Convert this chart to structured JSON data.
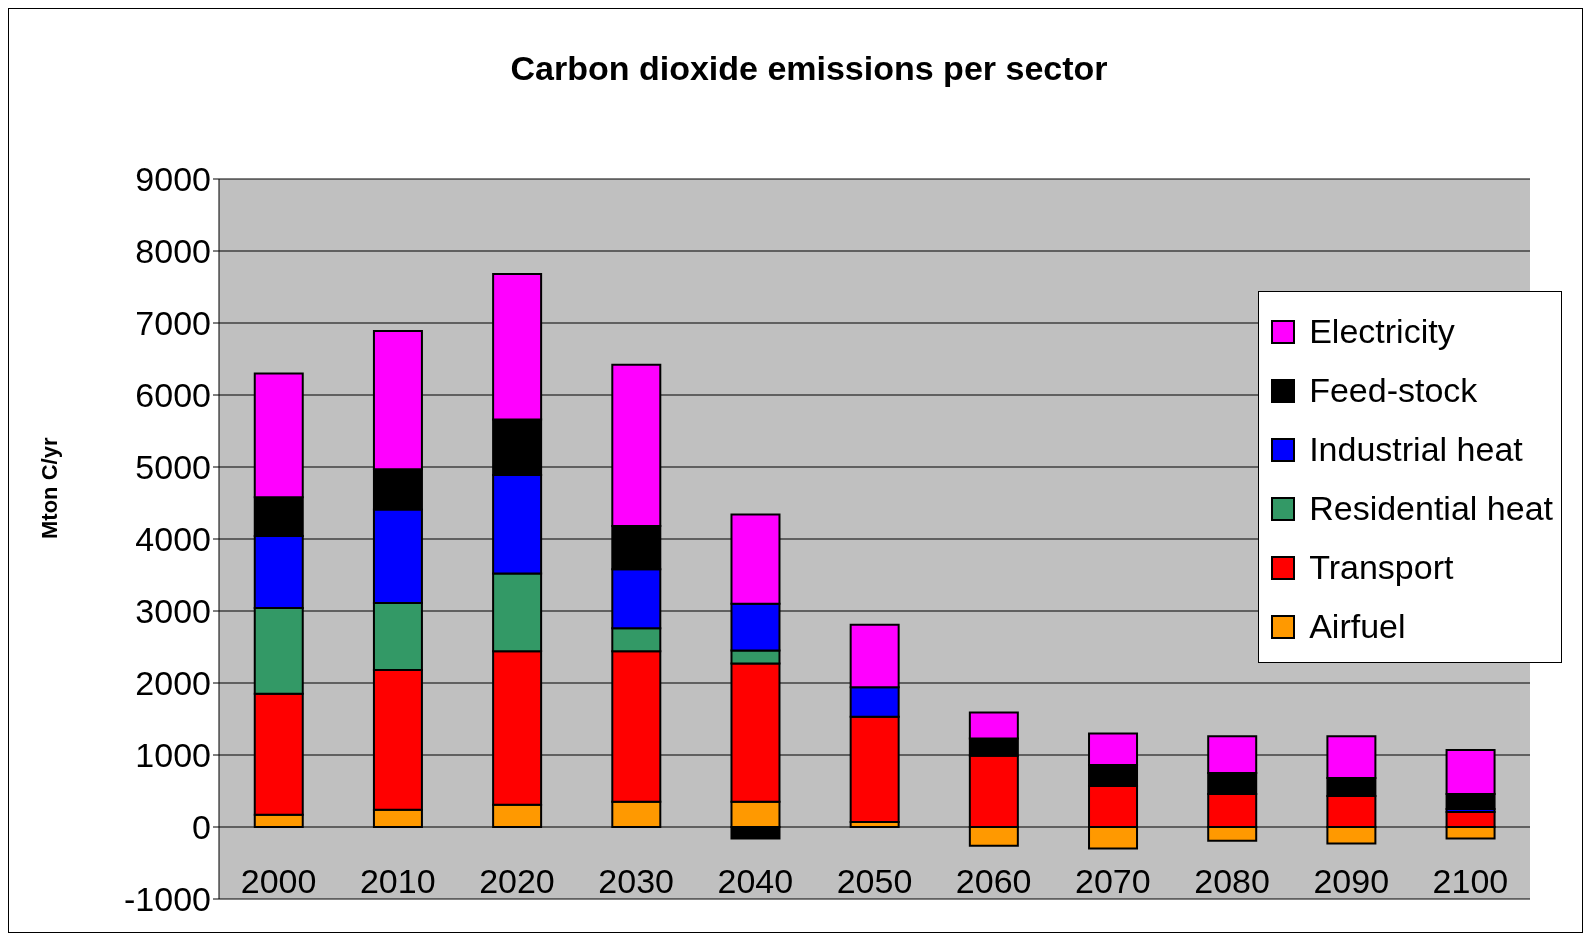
{
  "chart_data": {
    "type": "bar",
    "title": "Carbon dioxide emissions per sector",
    "ylabel": "Mton C/yr",
    "categories": [
      "2000",
      "2010",
      "2020",
      "2030",
      "2040",
      "2050",
      "2060",
      "2070",
      "2080",
      "2090",
      "2100"
    ],
    "stacked": true,
    "series": [
      {
        "name": "Airfuel",
        "color": "#ff9900",
        "values": [
          170,
          240,
          310,
          350,
          350,
          70,
          -260,
          -300,
          -190,
          -230,
          -160
        ]
      },
      {
        "name": "Transport",
        "color": "#ff0000",
        "values": [
          1680,
          1940,
          2130,
          2090,
          1920,
          1460,
          990,
          570,
          460,
          430,
          210
        ]
      },
      {
        "name": "Residential heat",
        "color": "#339966",
        "values": [
          1190,
          930,
          1080,
          320,
          180,
          0,
          0,
          0,
          0,
          0,
          0
        ]
      },
      {
        "name": "Industrial heat",
        "color": "#0000ff",
        "values": [
          1000,
          1300,
          1370,
          820,
          650,
          410,
          0,
          0,
          0,
          0,
          40
        ]
      },
      {
        "name": "Feed-stock",
        "color": "#000000",
        "values": [
          540,
          560,
          770,
          600,
          -160,
          0,
          240,
          290,
          290,
          250,
          210
        ]
      },
      {
        "name": "Electricity",
        "color": "#ff00ff",
        "values": [
          1720,
          1920,
          2020,
          2240,
          1240,
          870,
          360,
          440,
          510,
          580,
          610
        ]
      }
    ],
    "ylim": [
      -1000,
      9000
    ],
    "yticks": [
      -1000,
      0,
      1000,
      2000,
      3000,
      4000,
      5000,
      6000,
      7000,
      8000,
      9000
    ],
    "grid": "y",
    "legend": "right"
  }
}
